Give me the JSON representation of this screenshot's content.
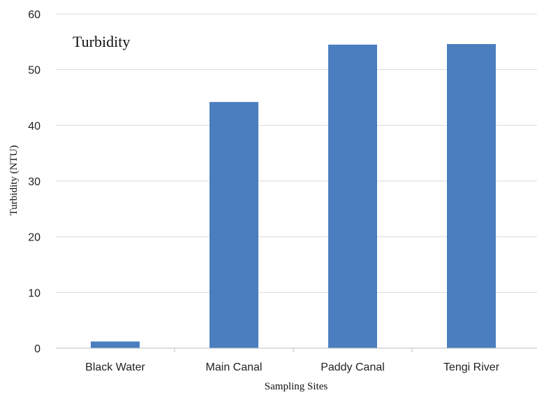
{
  "chart_data": {
    "type": "bar",
    "title": "Turbidity",
    "xlabel": "Sampling Sites",
    "ylabel": "Turbidity (NTU)",
    "categories": [
      "Black Water",
      "Main Canal",
      "Paddy Canal",
      "Tengi River"
    ],
    "values": [
      1.2,
      44.2,
      54.5,
      54.6
    ],
    "ylim": [
      0,
      60
    ],
    "yticks": [
      0,
      10,
      20,
      30,
      40,
      50,
      60
    ],
    "grid": true,
    "bar_color": "#4a7ebf"
  }
}
